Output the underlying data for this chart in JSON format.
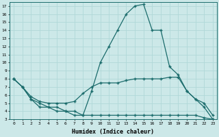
{
  "title": "",
  "xlabel": "Humidex (Indice chaleur)",
  "background_color": "#cce8e8",
  "line_color": "#1a6b6b",
  "grid_color": "#b0d8d8",
  "xlim": [
    -0.5,
    23.5
  ],
  "ylim": [
    3,
    17.5
  ],
  "xticks": [
    0,
    1,
    2,
    3,
    4,
    5,
    6,
    7,
    8,
    9,
    10,
    11,
    12,
    13,
    14,
    15,
    16,
    17,
    18,
    19,
    20,
    21,
    22,
    23
  ],
  "yticks": [
    3,
    4,
    5,
    6,
    7,
    8,
    9,
    10,
    11,
    12,
    13,
    14,
    15,
    16,
    17
  ],
  "series": [
    {
      "x": [
        0,
        1,
        2,
        3,
        4,
        5,
        6,
        7,
        8,
        9,
        10,
        11,
        12,
        13,
        14,
        15,
        16,
        17,
        18,
        19,
        20,
        21,
        22,
        23
      ],
      "y": [
        8,
        7,
        5.5,
        4.5,
        4.5,
        4.5,
        4,
        4,
        3.5,
        6.5,
        10,
        12,
        14,
        16,
        17,
        17.2,
        14,
        14,
        9.5,
        8.5,
        6.5,
        5.5,
        4.5,
        3
      ]
    },
    {
      "x": [
        0,
        1,
        2,
        3,
        4,
        5,
        6,
        7,
        8,
        9,
        10,
        11,
        12,
        13,
        14,
        15,
        16,
        17,
        18,
        19,
        20,
        21,
        22,
        23
      ],
      "y": [
        8,
        7,
        5.8,
        5.2,
        5,
        5,
        5,
        5.2,
        6.2,
        7,
        7.5,
        7.5,
        7.5,
        7.8,
        8,
        8,
        8,
        8,
        8.2,
        8.2,
        6.5,
        5.5,
        5,
        3.5
      ]
    },
    {
      "x": [
        0,
        1,
        2,
        3,
        4,
        5,
        6,
        7,
        8,
        9,
        10,
        11,
        12,
        13,
        14,
        15,
        16,
        17,
        18,
        19,
        20,
        21,
        22,
        23
      ],
      "y": [
        8,
        7,
        5.5,
        5,
        4.5,
        4,
        4,
        3.5,
        3.5,
        3.5,
        3.5,
        3.5,
        3.5,
        3.5,
        3.5,
        3.5,
        3.5,
        3.5,
        3.5,
        3.5,
        3.5,
        3.5,
        3.2,
        3
      ]
    }
  ]
}
